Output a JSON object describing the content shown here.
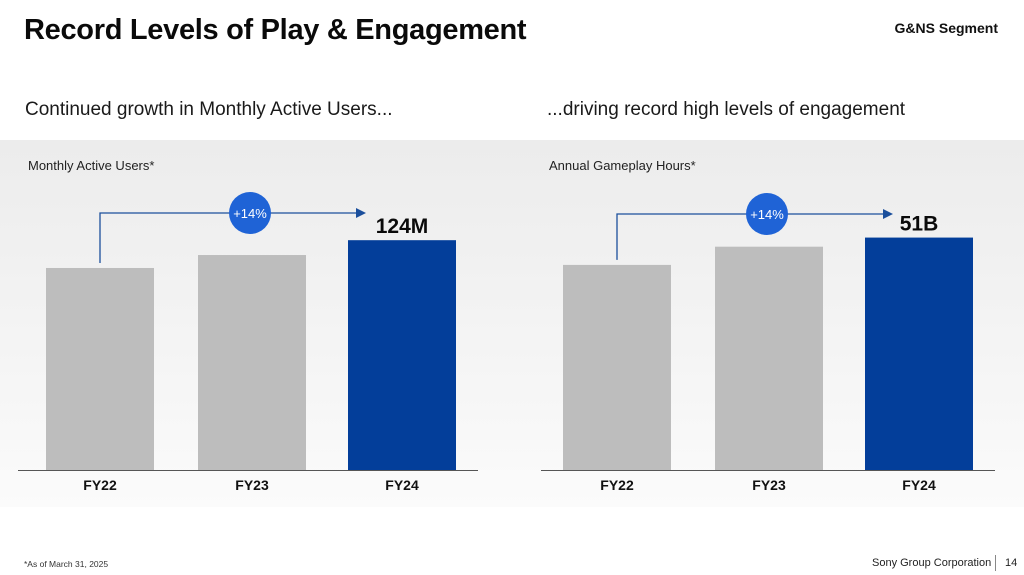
{
  "header": {
    "title": "Record Levels of Play & Engagement",
    "segment": "G&NS Segment"
  },
  "subtitles": {
    "left": "Continued growth in Monthly Active Users...",
    "right": "...driving record high levels of engagement"
  },
  "colors": {
    "bar_gray": "#bdbdbd",
    "bar_highlight": "#033e9a",
    "arrow": "#1b4f9c",
    "badge": "#1f63d6"
  },
  "chart_data": [
    {
      "type": "bar",
      "title": "Monthly Active Users*",
      "categories": [
        "FY22",
        "FY23",
        "FY24"
      ],
      "values": [
        109,
        116,
        124
      ],
      "value_labels": [
        "",
        "",
        "124M"
      ],
      "highlight_index": 2,
      "ylim": [
        0,
        150
      ],
      "annotation": {
        "text": "+14%",
        "from": "FY22",
        "to": "FY24"
      }
    },
    {
      "type": "bar",
      "title": "Annual Gameplay Hours*",
      "categories": [
        "FY22",
        "FY23",
        "FY24"
      ],
      "values": [
        45,
        49,
        51
      ],
      "value_labels": [
        "",
        "",
        "51B"
      ],
      "highlight_index": 2,
      "ylim": [
        0,
        61
      ],
      "annotation": {
        "text": "+14%",
        "from": "FY22",
        "to": "FY24"
      }
    }
  ],
  "footer": {
    "footnote": "*As of March 31, 2025",
    "company": "Sony Group Corporation",
    "page": "14"
  }
}
